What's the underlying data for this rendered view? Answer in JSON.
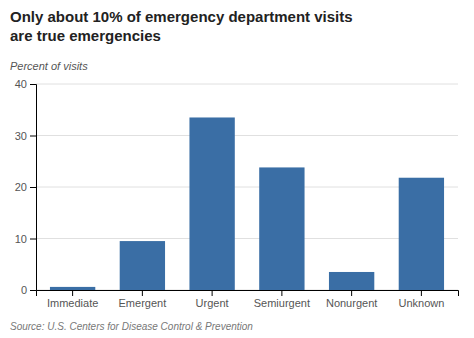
{
  "chart_data": {
    "type": "bar",
    "title": "Only about 10% of emergency department visits\nare true emergencies",
    "ylabel": "Percent of visits",
    "source": "Source: U.S. Centers for Disease Control & Prevention",
    "categories": [
      "Immediate",
      "Emergent",
      "Urgent",
      "Semiurgent",
      "Nonurgent",
      "Unknown"
    ],
    "values": [
      0.6,
      9.5,
      33.5,
      23.8,
      3.5,
      21.8
    ],
    "color": "#3A6EA5",
    "ylim": [
      0,
      40
    ],
    "yticks": [
      0,
      10,
      20,
      30,
      40
    ],
    "grid": true
  }
}
